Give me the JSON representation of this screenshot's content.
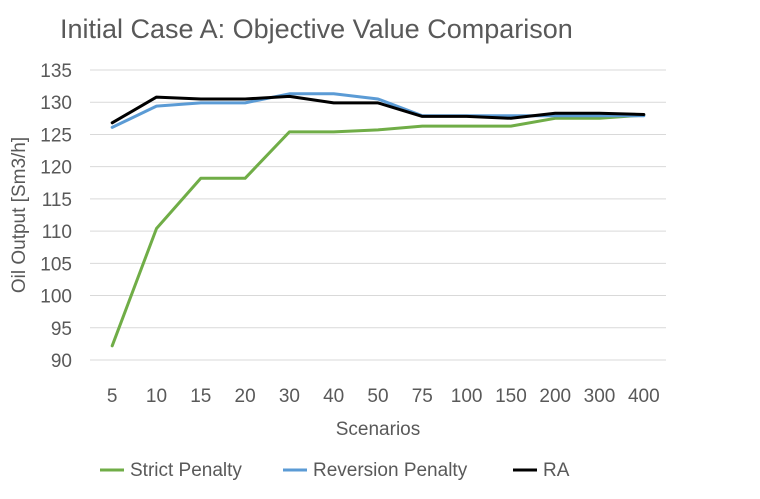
{
  "chart_data": {
    "type": "line",
    "title": "Initial Case A: Objective Value Comparison",
    "xlabel": "Scenarios",
    "ylabel": "Oil Output [Sm3/h]",
    "categories": [
      "5",
      "10",
      "15",
      "20",
      "30",
      "40",
      "50",
      "75",
      "100",
      "150",
      "200",
      "300",
      "400"
    ],
    "ylim": [
      90,
      135
    ],
    "yticks": [
      "90",
      "95",
      "100",
      "105",
      "110",
      "115",
      "120",
      "125",
      "130",
      "135"
    ],
    "grid": true,
    "legend_position": "bottom",
    "series": [
      {
        "name": "Strict Penalty",
        "color": "#70ad47",
        "values": [
          92.2,
          110.4,
          118.2,
          118.2,
          125.4,
          125.4,
          125.7,
          126.3,
          126.3,
          126.3,
          127.5,
          127.5,
          128.0
        ]
      },
      {
        "name": "Reversion Penalty",
        "color": "#5b9bd5",
        "values": [
          126.1,
          129.4,
          129.9,
          129.9,
          131.3,
          131.3,
          130.5,
          127.9,
          127.9,
          127.9,
          127.9,
          127.9,
          127.9
        ]
      },
      {
        "name": "RA",
        "color": "#000000",
        "values": [
          126.8,
          130.8,
          130.5,
          130.5,
          130.9,
          129.9,
          129.9,
          127.8,
          127.8,
          127.5,
          128.3,
          128.3,
          128.1
        ]
      }
    ]
  }
}
